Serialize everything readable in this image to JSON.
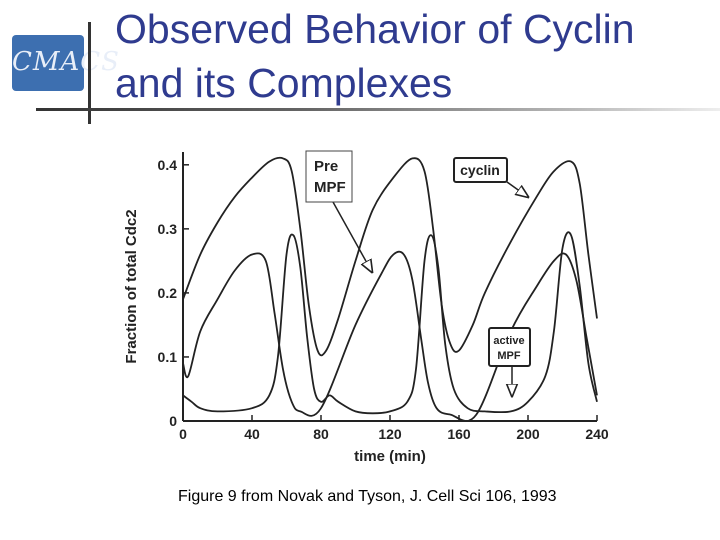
{
  "slide": {
    "title_line1": "Observed Behavior of Cyclin",
    "title_line2": "and its Complexes",
    "caption": "Figure 9 from Novak and Tyson, J. Cell Sci 106, 1993",
    "logo_text": "CMACS"
  },
  "chart_data": {
    "type": "line",
    "xlabel": "time (min)",
    "ylabel": "Fraction of total Cdc2",
    "xlim": [
      0,
      240
    ],
    "ylim": [
      0,
      0.42
    ],
    "x_ticks": [
      "0",
      "40",
      "80",
      "120",
      "160",
      "200",
      "240"
    ],
    "x_tick_values": [
      0,
      40,
      80,
      120,
      160,
      200,
      240
    ],
    "y_ticks": [
      "0",
      "0.1",
      "0.2",
      "0.3",
      "0.4"
    ],
    "y_tick_values": [
      0,
      0.1,
      0.2,
      0.3,
      0.4
    ],
    "series": [
      {
        "name": "cyclin",
        "x": [
          0,
          10,
          20,
          30,
          40,
          50,
          58,
          63,
          68,
          73,
          78,
          83,
          90,
          100,
          110,
          122,
          133,
          140,
          145,
          150,
          155,
          160,
          168,
          175,
          190,
          205,
          215,
          225,
          230,
          235,
          240
        ],
        "y": [
          0.19,
          0.26,
          0.31,
          0.35,
          0.38,
          0.405,
          0.41,
          0.39,
          0.3,
          0.18,
          0.11,
          0.11,
          0.16,
          0.25,
          0.33,
          0.38,
          0.41,
          0.39,
          0.3,
          0.18,
          0.12,
          0.11,
          0.15,
          0.2,
          0.28,
          0.35,
          0.39,
          0.405,
          0.37,
          0.26,
          0.16
        ]
      },
      {
        "name": "Pre MPF",
        "x": [
          0,
          3,
          10,
          20,
          30,
          40,
          48,
          53,
          58,
          63,
          68,
          80,
          100,
          115,
          122,
          128,
          133,
          138,
          142,
          147,
          155,
          170,
          190,
          205,
          215,
          222,
          228,
          234,
          240
        ],
        "y": [
          0.09,
          0.07,
          0.14,
          0.19,
          0.235,
          0.26,
          0.25,
          0.17,
          0.08,
          0.03,
          0.015,
          0.02,
          0.15,
          0.23,
          0.26,
          0.26,
          0.22,
          0.13,
          0.06,
          0.02,
          0.01,
          0.01,
          0.14,
          0.21,
          0.25,
          0.26,
          0.22,
          0.13,
          0.04
        ]
      },
      {
        "name": "active MPF",
        "x": [
          0,
          5,
          10,
          20,
          40,
          50,
          55,
          60,
          64,
          68,
          72,
          76,
          80,
          85,
          90,
          100,
          110,
          120,
          130,
          135,
          140,
          144,
          148,
          152,
          157,
          165,
          175,
          190,
          200,
          210,
          215,
          220,
          225,
          230,
          235,
          240
        ],
        "y": [
          0.04,
          0.03,
          0.02,
          0.015,
          0.02,
          0.04,
          0.1,
          0.26,
          0.29,
          0.24,
          0.13,
          0.05,
          0.03,
          0.04,
          0.03,
          0.015,
          0.012,
          0.015,
          0.03,
          0.08,
          0.25,
          0.29,
          0.24,
          0.12,
          0.05,
          0.02,
          0.015,
          0.015,
          0.03,
          0.07,
          0.14,
          0.27,
          0.29,
          0.21,
          0.09,
          0.03
        ]
      }
    ],
    "annotations": [
      {
        "id": "premPF",
        "lines": [
          "Pre",
          "MPF"
        ]
      },
      {
        "id": "cyclin",
        "lines": [
          "cyclin"
        ]
      },
      {
        "id": "active",
        "lines": [
          "active",
          "MPF"
        ]
      }
    ]
  }
}
